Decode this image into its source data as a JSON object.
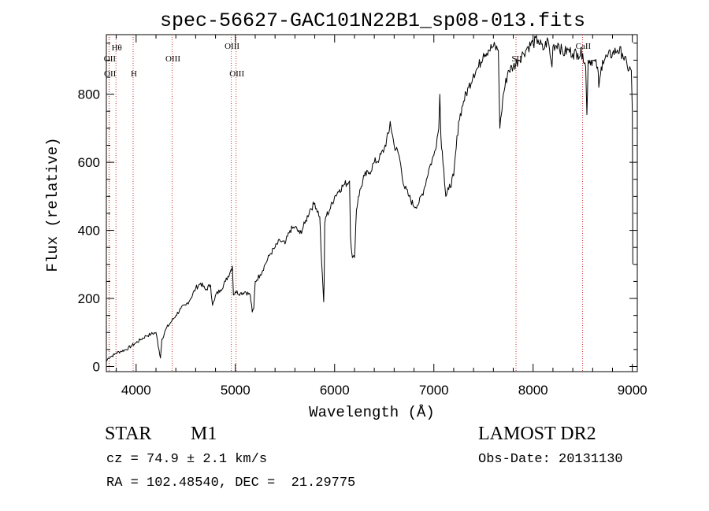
{
  "chart_data": {
    "type": "line",
    "title": "spec-56627-GAC101N22B1_sp08-013.fits",
    "xlabel": "Wavelength (Å)",
    "ylabel": "Flux (relative)",
    "xlim": [
      3700,
      9050
    ],
    "ylim": [
      -15,
      975
    ],
    "x_ticks": [
      4000,
      5000,
      6000,
      7000,
      8000,
      9000
    ],
    "y_ticks": [
      0,
      200,
      400,
      600,
      800
    ],
    "series": [
      {
        "color": "#000000",
        "x": [
          3700,
          3720,
          3750,
          3780,
          3800,
          3850,
          3900,
          3950,
          4000,
          4050,
          4100,
          4150,
          4200,
          4230,
          4245,
          4260,
          4300,
          4350,
          4400,
          4450,
          4500,
          4550,
          4600,
          4650,
          4700,
          4750,
          4770,
          4790,
          4800,
          4850,
          4900,
          4950,
          4970,
          4980,
          5000,
          5050,
          5100,
          5150,
          5170,
          5185,
          5200,
          5250,
          5300,
          5350,
          5400,
          5450,
          5500,
          5550,
          5600,
          5650,
          5700,
          5750,
          5800,
          5850,
          5870,
          5890,
          5895,
          5900,
          5910,
          5950,
          6000,
          6050,
          6100,
          6150,
          6160,
          6180,
          6200,
          6220,
          6240,
          6270,
          6300,
          6350,
          6400,
          6450,
          6500,
          6550,
          6560,
          6600,
          6650,
          6700,
          6750,
          6800,
          6850,
          6900,
          6950,
          7000,
          7050,
          7060,
          7070,
          7100,
          7120,
          7150,
          7200,
          7250,
          7300,
          7350,
          7400,
          7450,
          7500,
          7550,
          7600,
          7650,
          7665,
          7680,
          7700,
          7750,
          7800,
          7850,
          7900,
          7950,
          8000,
          8050,
          8100,
          8150,
          8180,
          8190,
          8200,
          8250,
          8300,
          8350,
          8400,
          8450,
          8500,
          8530,
          8542,
          8555,
          8600,
          8650,
          8662,
          8680,
          8700,
          8750,
          8800,
          8850,
          8900,
          8950,
          8990,
          9000,
          9002,
          9005
        ],
        "y": [
          15,
          25,
          30,
          35,
          40,
          45,
          50,
          60,
          70,
          80,
          90,
          95,
          100,
          50,
          25,
          80,
          110,
          130,
          150,
          170,
          180,
          200,
          230,
          245,
          225,
          240,
          180,
          195,
          210,
          225,
          250,
          280,
          295,
          210,
          220,
          215,
          220,
          210,
          160,
          170,
          250,
          270,
          300,
          330,
          350,
          370,
          360,
          400,
          410,
          390,
          420,
          460,
          480,
          440,
          300,
          190,
          250,
          420,
          440,
          460,
          500,
          520,
          535,
          545,
          380,
          320,
          320,
          460,
          500,
          530,
          560,
          570,
          600,
          610,
          640,
          690,
          720,
          650,
          620,
          530,
          500,
          470,
          480,
          520,
          580,
          620,
          700,
          800,
          680,
          580,
          500,
          520,
          560,
          720,
          780,
          820,
          860,
          880,
          920,
          930,
          940,
          930,
          700,
          740,
          800,
          870,
          880,
          900,
          920,
          940,
          950,
          960,
          930,
          960,
          900,
          880,
          940,
          950,
          920,
          930,
          920,
          920,
          920,
          880,
          740,
          900,
          900,
          880,
          820,
          860,
          900,
          910,
          920,
          930,
          920,
          880,
          870,
          750,
          530,
          300
        ]
      }
    ],
    "lines": [
      {
        "x": 3727,
        "label": "OII"
      },
      {
        "x": 3729,
        "label": "OII"
      },
      {
        "x": 3797,
        "label": "Hθ"
      },
      {
        "x": 3970,
        "label": "H"
      },
      {
        "x": 4363,
        "label": "OIII"
      },
      {
        "x": 4959,
        "label": "OIII"
      },
      {
        "x": 5007,
        "label": "OIII"
      },
      {
        "x": 7828,
        "label": "SII"
      },
      {
        "x": 8498,
        "label": "CaII"
      }
    ]
  },
  "info": {
    "class_label": "STAR",
    "subclass": "M1",
    "survey": "LAMOST DR2",
    "cz": "cz = 74.9 ± 2.1 km/s",
    "obs_date": "Obs-Date: 20131130",
    "radec": "RA = 102.48540, DEC =  21.29775"
  }
}
